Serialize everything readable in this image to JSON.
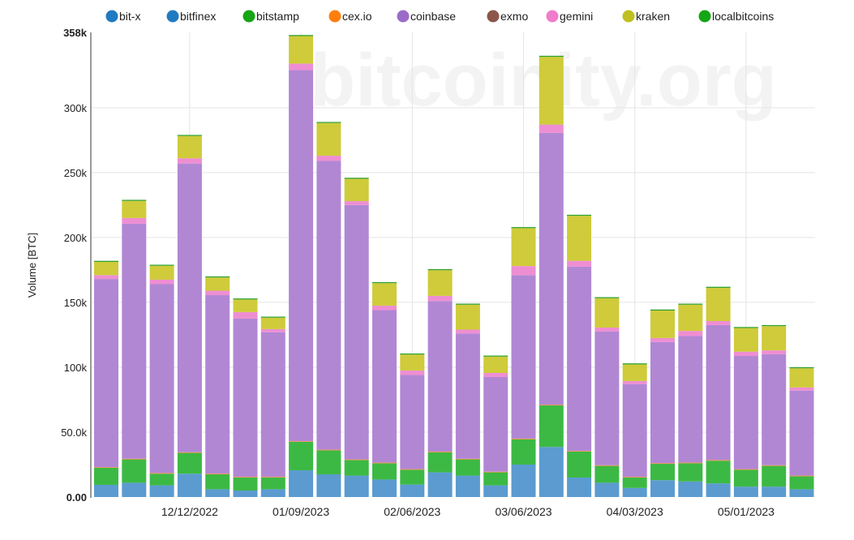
{
  "watermark": "bitcoinity.org",
  "chart_data": {
    "type": "bar",
    "stacked": true,
    "title": "",
    "xlabel": "",
    "ylabel": "Volume [BTC]",
    "ylim": [
      0,
      358000
    ],
    "y_ticks": [
      {
        "value": 0,
        "label": "0.00",
        "bold": true
      },
      {
        "value": 50000,
        "label": "50.0k"
      },
      {
        "value": 100000,
        "label": "100k"
      },
      {
        "value": 150000,
        "label": "150k"
      },
      {
        "value": 200000,
        "label": "200k"
      },
      {
        "value": 250000,
        "label": "250k"
      },
      {
        "value": 300000,
        "label": "300k"
      },
      {
        "value": 358000,
        "label": "358k",
        "bold": true
      }
    ],
    "x_ticks": [
      {
        "index": 3,
        "label": "12/12/2022"
      },
      {
        "index": 7,
        "label": "01/09/2023"
      },
      {
        "index": 11,
        "label": "02/06/2023"
      },
      {
        "index": 15,
        "label": "03/06/2023"
      },
      {
        "index": 19,
        "label": "04/03/2023"
      },
      {
        "index": 23,
        "label": "05/01/2023"
      }
    ],
    "bar_count": 26,
    "grid": true,
    "legend_position": "top",
    "legend": [
      {
        "name": "bit-x",
        "color": "#1f7bc0"
      },
      {
        "name": "bitfinex",
        "color": "#1f7bc0"
      },
      {
        "name": "bitstamp",
        "color": "#15a515"
      },
      {
        "name": "cex.io",
        "color": "#ff7f0e"
      },
      {
        "name": "coinbase",
        "color": "#9b6bc8"
      },
      {
        "name": "exmo",
        "color": "#8c564b"
      },
      {
        "name": "gemini",
        "color": "#f07ccb"
      },
      {
        "name": "kraken",
        "color": "#bfbf22"
      },
      {
        "name": "localbitcoins",
        "color": "#15a515"
      }
    ],
    "series": [
      {
        "name": "bit-x",
        "color": "#5b9bd0",
        "values": [
          0,
          0,
          0,
          0,
          0,
          0,
          0,
          0,
          0,
          0,
          0,
          0,
          0,
          0,
          0,
          0,
          0,
          0,
          0,
          0,
          0,
          0,
          0,
          0,
          0,
          0
        ]
      },
      {
        "name": "bitfinex",
        "color": "#5b9bd0",
        "values": [
          9.4,
          11,
          9,
          18,
          6,
          5,
          6,
          20.6,
          17.5,
          16.5,
          13.5,
          9.6,
          19,
          16.5,
          9,
          25,
          38.6,
          15,
          11,
          7,
          13,
          12,
          10.5,
          8,
          8,
          6
        ]
      },
      {
        "name": "bitstamp",
        "color": "#3cb944",
        "values": [
          13.1,
          18,
          9,
          16,
          11.5,
          10,
          9,
          21.9,
          18.5,
          12,
          12.5,
          11.4,
          15.5,
          12.5,
          10,
          19.5,
          32,
          20,
          13,
          8,
          12.6,
          14,
          17.5,
          13,
          16,
          10
        ]
      },
      {
        "name": "cex.io",
        "color": "#ff8c2e",
        "values": [
          0.5,
          0.5,
          0.5,
          0.5,
          0.5,
          0.5,
          0.5,
          0.5,
          0.5,
          0.5,
          0.5,
          0.5,
          0.5,
          0.5,
          0.5,
          0.5,
          0.5,
          0.5,
          0.5,
          0.5,
          0.5,
          0.5,
          0.5,
          0.5,
          0.5,
          0.5
        ]
      },
      {
        "name": "coinbase",
        "color": "#b187d4",
        "values": [
          145,
          181.1,
          145.5,
          222.5,
          137.6,
          122,
          111.5,
          286,
          222.5,
          196,
          117.5,
          72.5,
          116,
          96.5,
          73,
          126,
          209.5,
          142,
          103,
          71.5,
          93.3,
          97.5,
          104,
          87.2,
          85.5,
          65.5
        ]
      },
      {
        "name": "exmo",
        "color": "#a0695d",
        "values": [
          0,
          0,
          0,
          0,
          0,
          0,
          0,
          0,
          0,
          0,
          0,
          0,
          0,
          0,
          0,
          0,
          0,
          0,
          0,
          0,
          0,
          0,
          0,
          0,
          0,
          0
        ]
      },
      {
        "name": "gemini",
        "color": "#ee8ed2",
        "values": [
          3,
          4.4,
          3.5,
          4,
          3.4,
          5,
          2.4,
          5,
          4,
          3,
          3.5,
          3.5,
          4,
          3,
          3.1,
          7,
          6.4,
          4.5,
          3.1,
          2.4,
          3.1,
          4,
          3.1,
          3.3,
          3,
          2.4
        ]
      },
      {
        "name": "kraken",
        "color": "#cfcb3a",
        "values": [
          10.2,
          13.2,
          10.7,
          17.2,
          10.2,
          9.7,
          8.8,
          21.2,
          25.2,
          17.2,
          17.3,
          12.3,
          19.8,
          19.2,
          12.6,
          29.2,
          52.2,
          34.7,
          22.6,
          12.8,
          21.2,
          20.2,
          25.6,
          18.2,
          18.7,
          14.8
        ]
      },
      {
        "name": "localbitcoins",
        "color": "#2ca02c",
        "values": [
          0.8,
          0.8,
          0.8,
          0.8,
          0.8,
          0.8,
          0.8,
          0.8,
          0.8,
          0.8,
          0.8,
          0.8,
          0.8,
          0.8,
          0.8,
          0.8,
          0.8,
          0.8,
          0.8,
          0.8,
          0.8,
          0.8,
          0.8,
          0.8,
          0.8,
          0.8
        ]
      }
    ],
    "value_unit_multiplier": 1000
  }
}
